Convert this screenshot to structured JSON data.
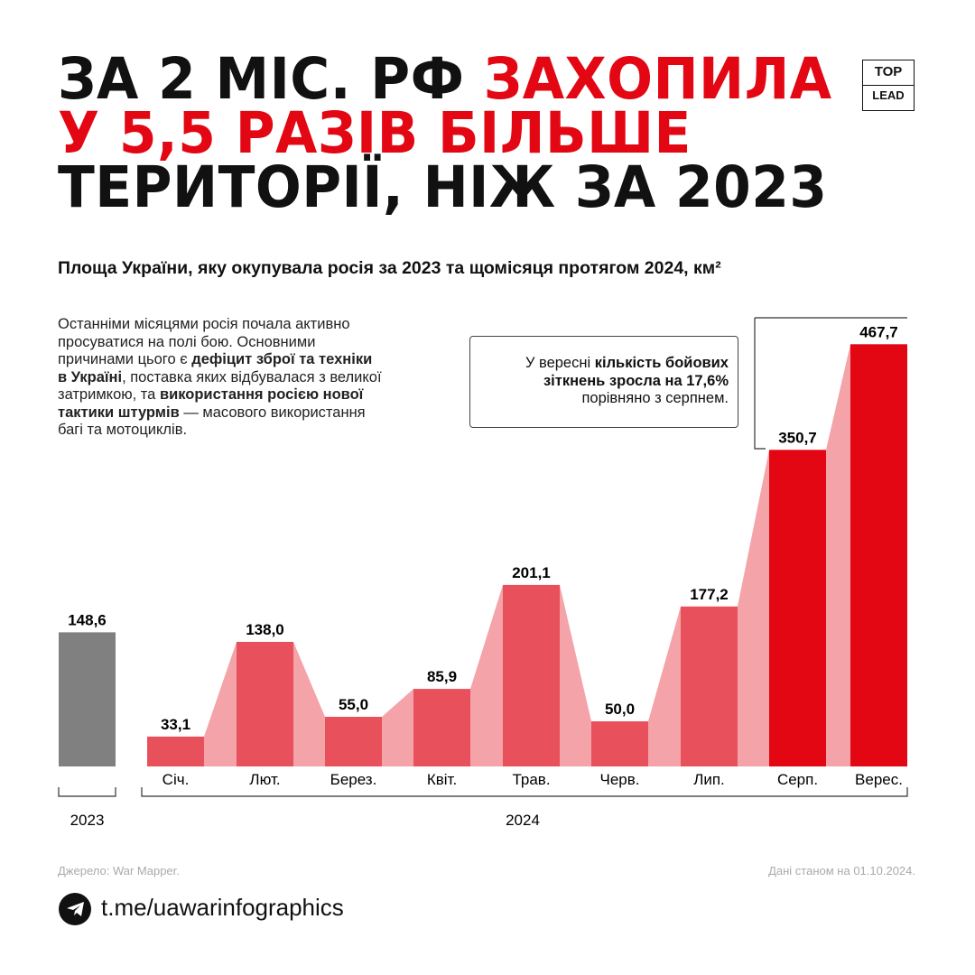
{
  "header": {
    "title": [
      "ЗА 2 МІС. РФ",
      "ЗАХОПИЛА",
      "У 5,5 РАЗІВ БІЛЬШЕ",
      "ТЕРИТОРІЇ, НІЖ ЗА 2023"
    ],
    "logo": [
      "TOP",
      "LEAD"
    ]
  },
  "chart_data": {
    "type": "bar",
    "subtitle": "Площа України, яку окупувала росія за 2023 та щомісяця протягом 2024, км²",
    "groups": [
      {
        "name": "2023",
        "categories": [
          null
        ],
        "values": [
          148.6
        ],
        "value_labels": [
          "148,6"
        ],
        "colors": [
          "#808080"
        ]
      },
      {
        "name": "2024",
        "categories": [
          "Січ.",
          "Лют.",
          "Берез.",
          "Квіт.",
          "Трав.",
          "Черв.",
          "Лип.",
          "Серп.",
          "Верес."
        ],
        "values": [
          33.1,
          138.0,
          55.0,
          85.9,
          201.1,
          50.0,
          177.2,
          350.7,
          467.7
        ],
        "value_labels": [
          "33,1",
          "138,0",
          "55,0",
          "85,9",
          "201,1",
          "50,0",
          "177,2",
          "350,7",
          "467,7"
        ],
        "colors": [
          "#e8505b",
          "#e8505b",
          "#e8505b",
          "#e8505b",
          "#e8505b",
          "#e8505b",
          "#e8505b",
          "#e30613",
          "#e30613"
        ]
      }
    ],
    "connector_color": "#f4a3a9",
    "annotation": [
      "У вересні ",
      "кількість бойових зіткнень зросла на 17,6%",
      " порівняно з серпнем."
    ]
  },
  "note": [
    "Останніми місяцями росія почала активно просуватися на полі бою. Основними причинами цього є ",
    "дефіцит зброї та техніки в Україні",
    ", поставка яких відбувалася з великої затримкою, та ",
    "використання росією нової тактики штурмів",
    " — масового використання багі та мотоциклів."
  ],
  "footer": {
    "source": "Джерело: War Mapper.",
    "date": "Дані станом на 01.10.2024.",
    "link": "t.me/uawarinfographics"
  }
}
